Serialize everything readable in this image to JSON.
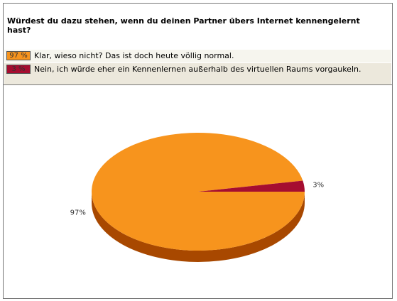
{
  "chart_data": {
    "type": "pie",
    "title": "Würdest du dazu stehen, wenn du deinen Partner übers Internet kennengelernt hast?",
    "categories": [
      "Klar, wieso nicht? Das ist doch heute völlig normal.",
      "Nein, ich würde eher ein Kennenlernen außerhalb des virtuellen Raums vorgaukeln."
    ],
    "values": [
      97,
      3
    ],
    "value_labels": [
      "97 %",
      "3 %"
    ],
    "slice_labels": [
      "97%",
      "3%"
    ],
    "colors": [
      "#f7941d",
      "#a50d30"
    ],
    "side_colors": [
      "#a84800",
      "#6a0a1e"
    ]
  }
}
